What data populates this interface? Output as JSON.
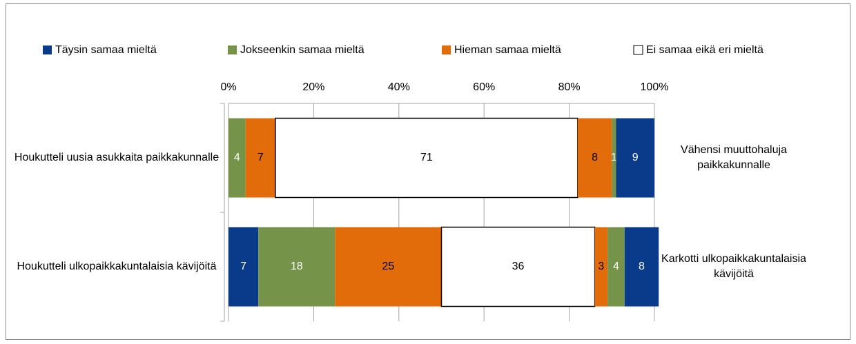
{
  "chart_data": {
    "type": "stacked_bar_horizontal",
    "legend": [
      {
        "name": "Täysin samaa mieltä",
        "color": "#0a3a8a"
      },
      {
        "name": "Jokseenkin samaa mieltä",
        "color": "#76934a"
      },
      {
        "name": "Hieman samaa mieltä",
        "color": "#e36c0a"
      },
      {
        "name": "Ei samaa eikä eri mieltä",
        "color": "#ffffff"
      }
    ],
    "categories": [
      "Houkutteli uusia asukkaita paikkakunnalle",
      "Houkutteli ulkopaikkakuntalaisia kävijöitä"
    ],
    "right_categories": [
      "Vähensi muuttohaluja paikkakunnalle",
      "Karkotti ulkopaikkakuntalaisia kävijöitä"
    ],
    "series": [
      {
        "color": "#0a3a8a",
        "text_color": "#ffffff",
        "values": [
          0,
          7
        ]
      },
      {
        "color": "#76934a",
        "text_color": "#ffffff",
        "values": [
          4,
          18
        ]
      },
      {
        "color": "#e36c0a",
        "text_color": "#000000",
        "values": [
          7,
          25
        ]
      },
      {
        "color": "#ffffff",
        "text_color": "#000000",
        "values": [
          71,
          36
        ]
      },
      {
        "color": "#e36c0a",
        "text_color": "#000000",
        "values": [
          8,
          3
        ]
      },
      {
        "color": "#76934a",
        "text_color": "#ffffff",
        "values": [
          1,
          4
        ]
      },
      {
        "color": "#0a3a8a",
        "text_color": "#ffffff",
        "values": [
          9,
          8
        ]
      }
    ],
    "xlim": [
      0,
      100
    ],
    "xticks": [
      {
        "value": 0,
        "label": "0%"
      },
      {
        "value": 20,
        "label": "20%"
      },
      {
        "value": 40,
        "label": "40%"
      },
      {
        "value": 60,
        "label": "60%"
      },
      {
        "value": 80,
        "label": "80%"
      },
      {
        "value": 100,
        "label": "100%"
      }
    ],
    "grid": true
  }
}
